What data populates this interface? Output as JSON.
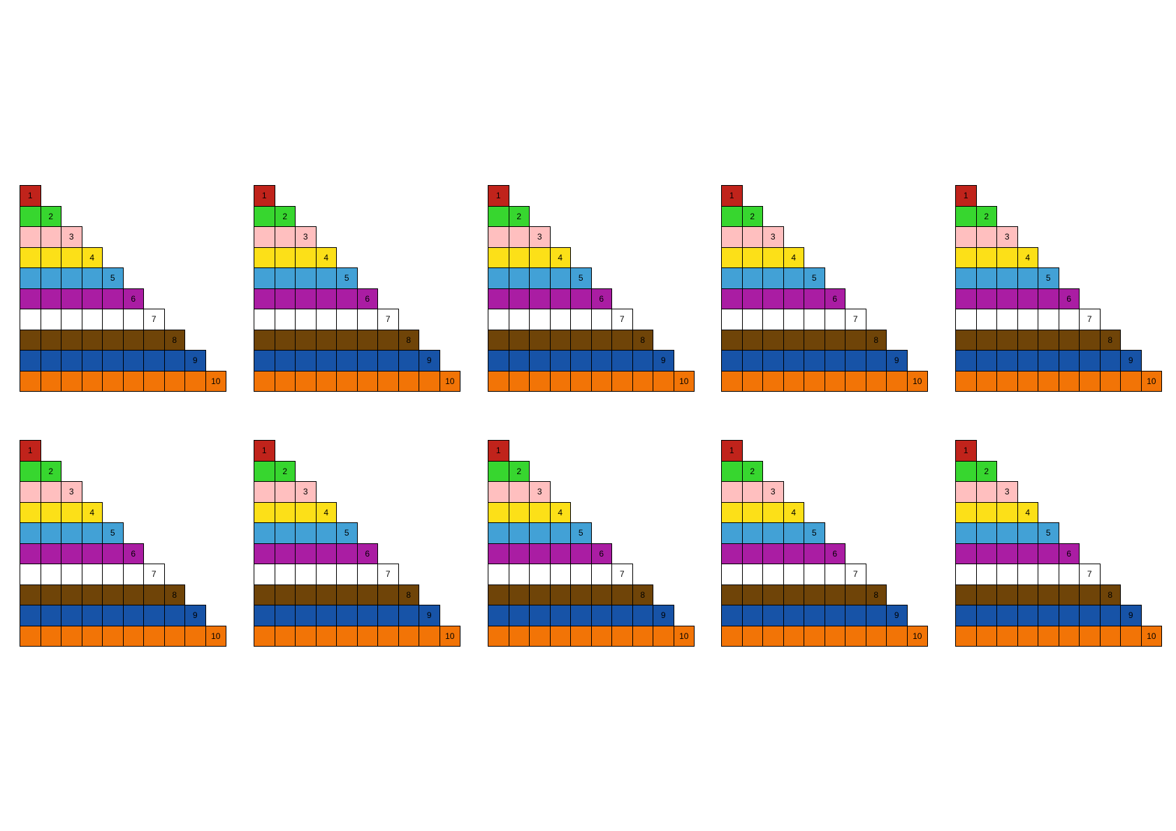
{
  "staircase_count": 10,
  "rows": [
    {
      "length": 1,
      "label": "1",
      "color": "#c0231b"
    },
    {
      "length": 2,
      "label": "2",
      "color": "#37d62f"
    },
    {
      "length": 3,
      "label": "3",
      "color": "#ffbfbf"
    },
    {
      "length": 4,
      "label": "4",
      "color": "#fce018"
    },
    {
      "length": 5,
      "label": "5",
      "color": "#42a1d6"
    },
    {
      "length": 6,
      "label": "6",
      "color": "#aa1da3"
    },
    {
      "length": 7,
      "label": "7",
      "color": "#ffffff"
    },
    {
      "length": 8,
      "label": "8",
      "color": "#6f4408"
    },
    {
      "length": 9,
      "label": "9",
      "color": "#1753a7"
    },
    {
      "length": 10,
      "label": "10",
      "color": "#f27406"
    }
  ]
}
